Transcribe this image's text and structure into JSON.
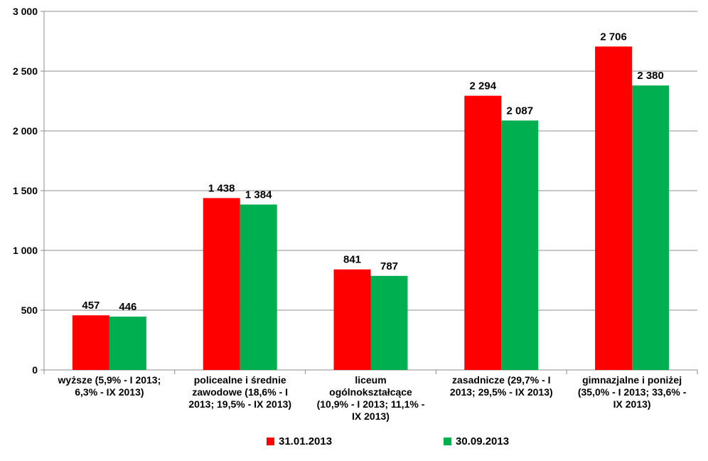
{
  "chart_data": {
    "type": "bar",
    "categories": [
      [
        "wyższe  (5,9%  - I 2013;",
        "6,3%  - IX 2013)"
      ],
      [
        "policealne i średnie",
        "zawodowe (18,6%  - I",
        "2013; 19,5%  - IX 2013)"
      ],
      [
        "liceum",
        "ogólnokształcące",
        "(10,9%  - I 2013; 11,1%  -",
        "IX 2013)"
      ],
      [
        "zasadnicze (29,7%  - I",
        "2013; 29,5%  - IX 2013)"
      ],
      [
        "gimnazjalne i poniżej",
        "(35,0%  - I 2013; 33,6%  -",
        "IX 2013)"
      ]
    ],
    "series": [
      {
        "name": "31.01.2013",
        "color": "#ff0000",
        "values": [
          457,
          1438,
          841,
          2294,
          2706
        ],
        "labels": [
          "457",
          "1 438",
          "841",
          "2 294",
          "2 706"
        ]
      },
      {
        "name": "30.09.2013",
        "color": "#00b050",
        "values": [
          446,
          1384,
          787,
          2087,
          2380
        ],
        "labels": [
          "446",
          "1 384",
          "787",
          "2 087",
          "2 380"
        ]
      }
    ],
    "yticks": [
      "0",
      "500",
      "1 000",
      "1 500",
      "2 000",
      "2 500",
      "3 000"
    ],
    "ylim": [
      0,
      3000
    ],
    "grid": true,
    "legend": "bottom"
  }
}
